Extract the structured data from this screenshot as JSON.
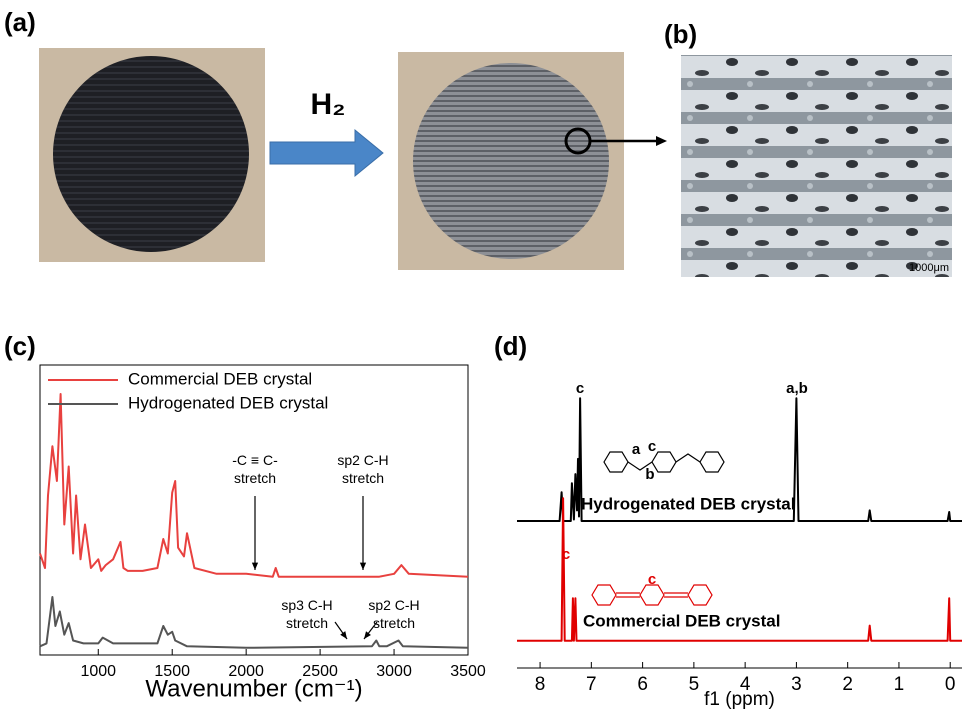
{
  "panels": {
    "a": "(a)",
    "b": "(b)",
    "c": "(c)",
    "d": "(d)"
  },
  "reaction_label": "H₂",
  "scale_bar": "1000μm",
  "chart_data": [
    {
      "type": "line",
      "xlabel": "Wavenumber (cm⁻¹)",
      "xlim": [
        606,
        3500
      ],
      "xticks": [
        1000,
        1500,
        2000,
        2500,
        3000,
        3500
      ],
      "ylim": [
        0,
        100
      ],
      "series": [
        {
          "name": "Commercial DEB crystal",
          "color": "#e8413f",
          "x": [
            606,
            640,
            660,
            690,
            720,
            745,
            770,
            800,
            830,
            850,
            880,
            910,
            950,
            1000,
            1020,
            1050,
            1100,
            1150,
            1170,
            1200,
            1300,
            1400,
            1440,
            1470,
            1500,
            1520,
            1540,
            1580,
            1600,
            1650,
            1800,
            2000,
            2180,
            2200,
            2220,
            2500,
            2900,
            3000,
            3050,
            3100,
            3500
          ],
          "values": [
            35,
            30,
            55,
            72,
            60,
            90,
            45,
            65,
            35,
            55,
            33,
            45,
            30,
            33,
            29,
            31,
            33,
            39,
            30,
            29,
            29,
            30,
            40,
            35,
            56,
            60,
            37,
            34,
            42,
            30,
            28,
            28,
            27,
            30,
            27,
            27,
            27,
            28,
            31,
            28,
            27
          ]
        },
        {
          "name": "Hydrogenated DEB crystal",
          "color": "#555555",
          "x": [
            606,
            650,
            690,
            710,
            740,
            770,
            800,
            830,
            900,
            1000,
            1030,
            1100,
            1400,
            1440,
            1470,
            1500,
            1520,
            1600,
            2000,
            2850,
            2880,
            2900,
            2950,
            3030,
            3060,
            3500
          ],
          "values": [
            3,
            4,
            20,
            10,
            15,
            7,
            11,
            5,
            4,
            4,
            6,
            4,
            4,
            10,
            7,
            8,
            5,
            3,
            2.5,
            3,
            5,
            3,
            3,
            5,
            3,
            2.5
          ]
        }
      ],
      "annotations": [
        [
          "-C ≡ C-",
          "stretch"
        ],
        [
          "sp2 C-H",
          "stretch"
        ],
        [
          "sp3 C-H",
          "stretch"
        ],
        [
          "sp2 C-H",
          "stretch"
        ]
      ]
    },
    {
      "type": "line",
      "xlabel": "f1 (ppm)",
      "xlim": [
        8.45,
        -0.23
      ],
      "xticks": [
        8,
        7,
        6,
        5,
        4,
        3,
        2,
        1,
        0
      ],
      "ylim": [
        0,
        100
      ],
      "series": [
        {
          "name": "Hydrogenated DEB crystal",
          "color": "#000000",
          "x": [
            8.45,
            7.62,
            7.58,
            7.55,
            7.4,
            7.38,
            7.34,
            7.31,
            7.28,
            7.26,
            7.24,
            7.22,
            7.19,
            3.05,
            3.0,
            2.96,
            1.6,
            1.57,
            1.54,
            0.05,
            0.02,
            0.0,
            -0.23
          ],
          "values": [
            48.5,
            48.5,
            58,
            48.5,
            48.5,
            61,
            49,
            64,
            52,
            69,
            50,
            89,
            48.5,
            48.5,
            89,
            48.5,
            48.5,
            52,
            48.5,
            48.5,
            51.5,
            48.5,
            48.5
          ]
        },
        {
          "name": "Commercial DEB crystal",
          "color": "#e00000",
          "x": [
            8.45,
            7.58,
            7.55,
            7.52,
            7.38,
            7.36,
            7.34,
            7.31,
            7.29,
            1.6,
            1.57,
            1.54,
            0.05,
            0.02,
            0.0,
            -0.23
          ],
          "values": [
            9,
            9,
            56,
            9,
            9,
            23,
            9,
            23,
            9,
            9,
            14,
            9,
            9,
            23,
            9,
            9
          ]
        }
      ],
      "annotations": [
        {
          "text": "c",
          "color": "#000000"
        },
        {
          "text": "a,b",
          "color": "#000000"
        },
        {
          "text": "c",
          "color": "#e00000"
        },
        {
          "text": "a",
          "color": "#000000"
        },
        {
          "text": "b",
          "color": "#000000"
        },
        {
          "text": "c",
          "color": "#000000"
        },
        {
          "text": "c",
          "color": "#e00000"
        }
      ]
    }
  ]
}
